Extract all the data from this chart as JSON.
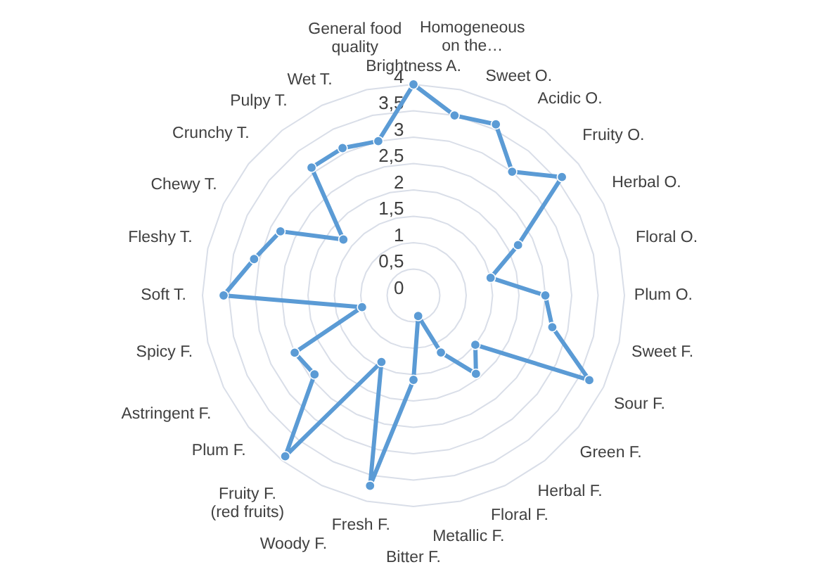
{
  "chart_data": {
    "type": "radar",
    "categories": [
      "Brightness A.",
      "Homogeneous on the…",
      "Sweet O.",
      "Acidic O.",
      "Fruity O.",
      "Herbal O.",
      "Floral O.",
      "Plum O.",
      "Sweet F.",
      "Sour F.",
      "Green F.",
      "Herbal F.",
      "Floral F.",
      "Metallic F.",
      "Bitter F.",
      "Fresh F.",
      "Woody F.",
      "Fruity F. (red fruits)",
      "Plum F.",
      "Astringent F.",
      "Spicy F.",
      "Soft T.",
      "Fleshy T.",
      "Chewy T.",
      "Crunchy T.",
      "Pulpy T.",
      "Wet T.",
      "General food quality"
    ],
    "series": [
      {
        "color": "#5b9bd5",
        "values": [
          4.0,
          3.5,
          3.6,
          3.0,
          3.6,
          2.2,
          1.5,
          2.5,
          2.7,
          3.7,
          1.5,
          1.9,
          1.2,
          0.4,
          1.6,
          3.7,
          1.4,
          3.9,
          2.4,
          2.5,
          1.0,
          3.6,
          3.1,
          2.8,
          1.7,
          3.1,
          3.1,
          3.0
        ]
      }
    ],
    "ylim": [
      0,
      4
    ],
    "yticks": [
      0,
      {
        "value": 0.5,
        "label": "0,5"
      },
      1,
      {
        "value": 1.5,
        "label": "1,5"
      },
      2,
      {
        "value": 2.5,
        "label": "2,5"
      },
      3,
      {
        "value": 3.5,
        "label": "3,5"
      },
      4
    ],
    "grid": true,
    "marker": "circle"
  }
}
